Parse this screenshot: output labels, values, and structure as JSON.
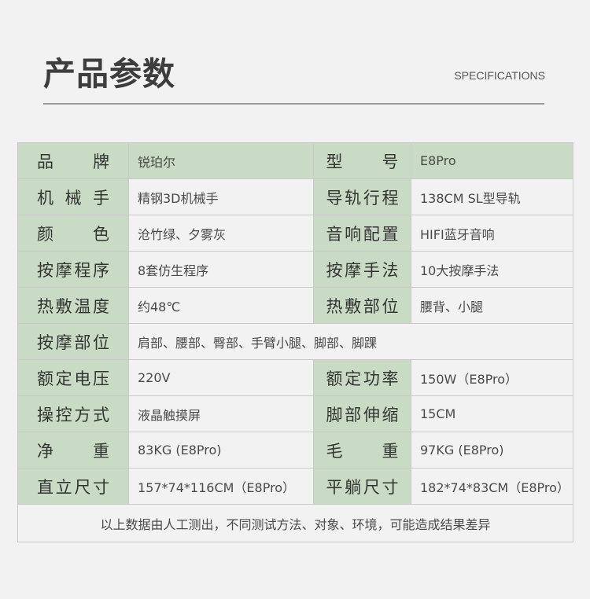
{
  "header": {
    "title": "产品参数",
    "subtitle": "SPECIFICATIONS"
  },
  "rows": [
    {
      "l1": "品牌",
      "v1": "锐珀尔",
      "l2": "型号",
      "v2": "E8Pro"
    },
    {
      "l1": "机械手",
      "v1": "精钢3D机械手",
      "l2": "导轨行程",
      "v2": "138CM SL型导轨"
    },
    {
      "l1": "颜色",
      "v1": "沧竹绿、夕雾灰",
      "l2": "音响配置",
      "v2": "HIFI蓝牙音响"
    },
    {
      "l1": "按摩程序",
      "v1": "8套仿生程序",
      "l2": "按摩手法",
      "v2": "10大按摩手法"
    },
    {
      "l1": "热敷温度",
      "v1": "约48℃",
      "l2": "热敷部位",
      "v2": "腰背、小腿"
    },
    {
      "l1": "按摩部位",
      "v1": "肩部、腰部、臀部、手臂小腿、脚部、脚踝"
    },
    {
      "l1": "额定电压",
      "v1": "220V",
      "l2": "额定功率",
      "v2": "150W（E8Pro）"
    },
    {
      "l1": "操控方式",
      "v1": "液晶触摸屏",
      "l2": "脚部伸缩",
      "v2": "15CM"
    },
    {
      "l1": "净重",
      "v1": "83KG (E8Pro)",
      "l2": "毛重",
      "v2": "97KG (E8Pro)"
    },
    {
      "l1": "直立尺寸",
      "v1": "157*74*116CM（E8Pro）",
      "l2": "平躺尺寸",
      "v2": "182*74*83CM（E8Pro）"
    }
  ],
  "footnote": "以上数据由人工测出，不同测试方法、对象、环境，可能造成结果差异",
  "colors": {
    "label_bg": "#c9dbc4",
    "page_bg": "#f2f2f2"
  }
}
